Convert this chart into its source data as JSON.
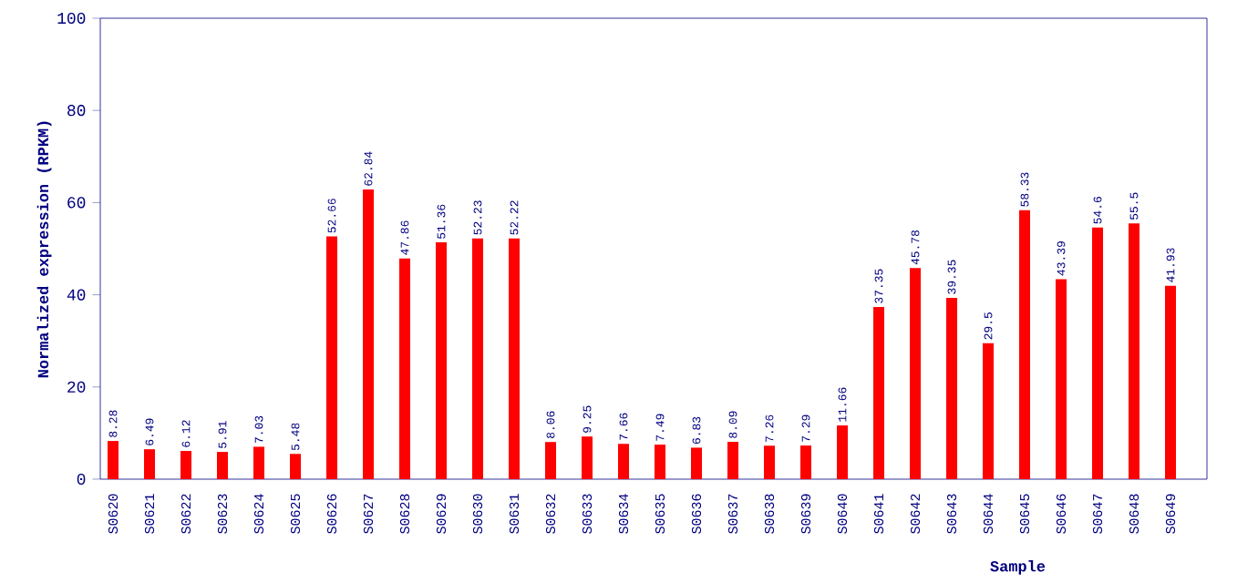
{
  "chart_data": {
    "type": "bar",
    "xlabel": "Sample",
    "ylabel": "Normalized expression (RPKM)",
    "categories": [
      "S0620",
      "S0621",
      "S0622",
      "S0623",
      "S0624",
      "S0625",
      "S0626",
      "S0627",
      "S0628",
      "S0629",
      "S0630",
      "S0631",
      "S0632",
      "S0633",
      "S0634",
      "S0635",
      "S0636",
      "S0637",
      "S0638",
      "S0639",
      "S0640",
      "S0641",
      "S0642",
      "S0643",
      "S0644",
      "S0645",
      "S0646",
      "S0647",
      "S0648",
      "S0649"
    ],
    "values": [
      8.28,
      6.49,
      6.12,
      5.91,
      7.03,
      5.48,
      52.66,
      62.84,
      47.86,
      51.36,
      52.23,
      52.22,
      8.06,
      9.25,
      7.66,
      7.49,
      6.83,
      8.09,
      7.26,
      7.29,
      11.66,
      37.35,
      45.78,
      39.35,
      29.5,
      58.33,
      43.39,
      54.6,
      55.5,
      41.93
    ],
    "color": "#ff0000",
    "ylim": [
      0,
      100
    ],
    "yticks": [
      0,
      20,
      40,
      60,
      80,
      100
    ],
    "data_labels": true
  }
}
